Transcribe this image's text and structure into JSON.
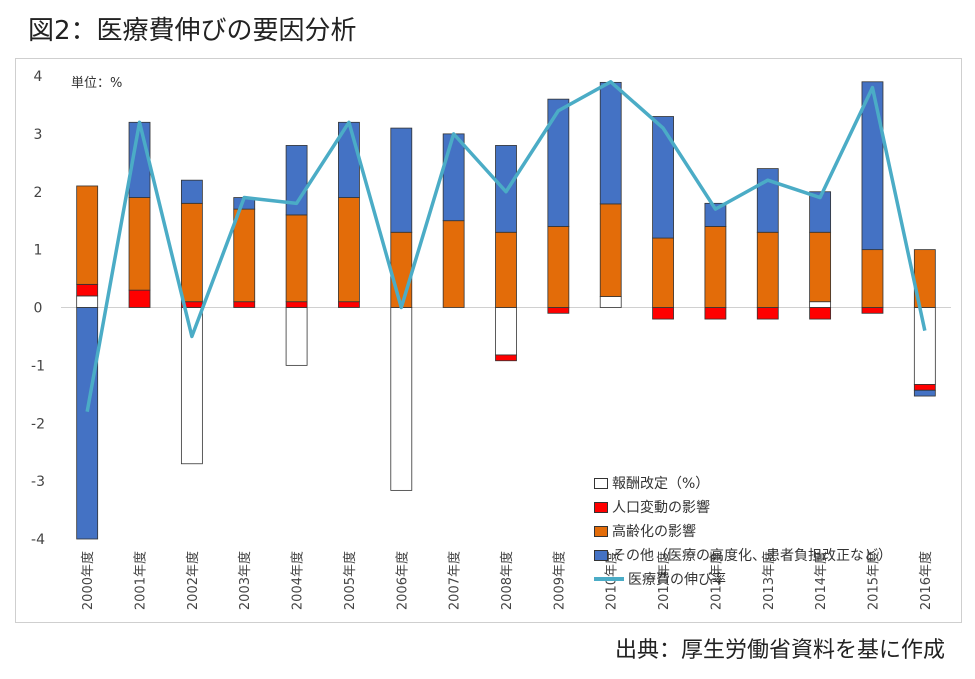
{
  "page": {
    "title": "図2：医療費伸びの要因分析",
    "source": "出典：厚生労働省資料を基に作成"
  },
  "colors": {
    "revision": "#ffffff",
    "population": "#ff0000",
    "aging": "#e36c09",
    "other": "#4472c4",
    "growth": "#4bacc6"
  },
  "chart_data": {
    "type": "bar",
    "title": "",
    "unit_label": "単位：%",
    "ylim": [
      -4,
      4
    ],
    "yticks": [
      -4,
      -3,
      -2,
      -1,
      0,
      1,
      2,
      3,
      4
    ],
    "grid": false,
    "legend_position": "bottom-right",
    "categories": [
      "2000年度",
      "2001年度",
      "2002年度",
      "2003年度",
      "2004年度",
      "2005年度",
      "2006年度",
      "2007年度",
      "2008年度",
      "2009年度",
      "2010年度",
      "2011年度",
      "2012年度",
      "2013年度",
      "2014年度",
      "2015年度",
      "2016年度"
    ],
    "series": [
      {
        "name": "報酬改定（%）",
        "kind": "stacked-bar",
        "values": [
          0.2,
          0,
          -2.7,
          0,
          -1.0,
          0,
          -3.16,
          0,
          -0.82,
          0,
          0.19,
          0,
          0,
          0,
          0.1,
          0,
          -1.33
        ]
      },
      {
        "name": "人口変動の影響",
        "kind": "stacked-bar",
        "values": [
          0.2,
          0.3,
          0.1,
          0.1,
          0.1,
          0.1,
          0,
          0,
          -0.1,
          -0.1,
          0,
          -0.2,
          -0.2,
          -0.2,
          -0.2,
          -0.1,
          -0.1
        ]
      },
      {
        "name": "高齢化の影響",
        "kind": "stacked-bar",
        "values": [
          1.7,
          1.6,
          1.7,
          1.6,
          1.5,
          1.8,
          1.3,
          1.5,
          1.3,
          1.4,
          1.6,
          1.2,
          1.4,
          1.3,
          1.2,
          1.0,
          1.0
        ]
      },
      {
        "name": "その他（医療の高度化、患者負担改正など）",
        "kind": "stacked-bar",
        "values": [
          -4.0,
          1.3,
          0.4,
          0.2,
          1.2,
          1.3,
          1.8,
          1.5,
          1.5,
          2.2,
          2.1,
          2.1,
          0.4,
          1.1,
          0.7,
          2.9,
          -0.1
        ]
      },
      {
        "name": "医療費の伸び率",
        "kind": "line",
        "values": [
          -1.8,
          3.2,
          -0.5,
          1.9,
          1.8,
          3.2,
          0.0,
          3.0,
          2.0,
          3.4,
          3.9,
          3.1,
          1.7,
          2.2,
          1.9,
          3.8,
          -0.4
        ]
      }
    ]
  }
}
